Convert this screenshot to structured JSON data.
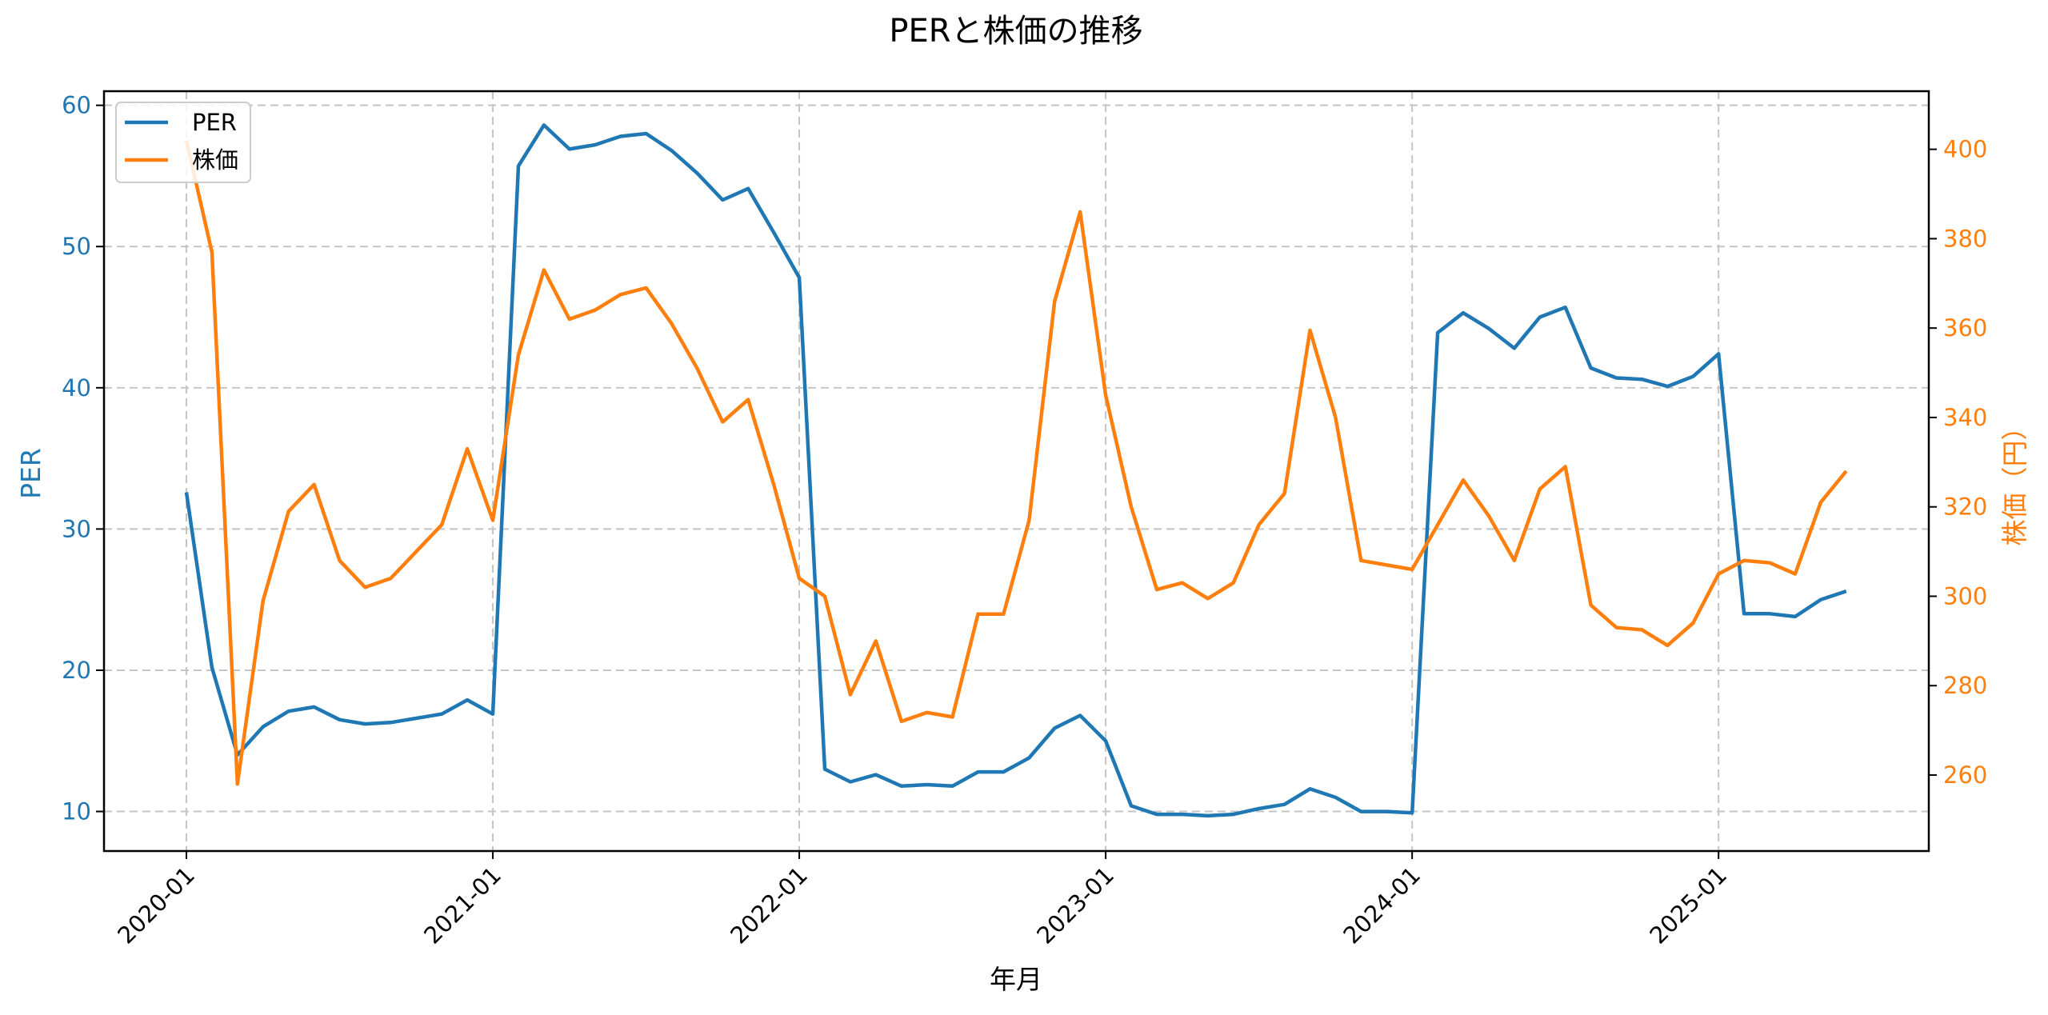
{
  "chart_data": {
    "type": "line",
    "title": "PERと株価の推移",
    "xlabel": "年月",
    "ylabel": "PER",
    "y2label": "株価（円）",
    "x": [
      "2020-01",
      "2020-02",
      "2020-03",
      "2020-04",
      "2020-05",
      "2020-06",
      "2020-07",
      "2020-08",
      "2020-09",
      "2020-10",
      "2020-11",
      "2020-12",
      "2021-01",
      "2021-02",
      "2021-03",
      "2021-04",
      "2021-05",
      "2021-06",
      "2021-07",
      "2021-08",
      "2021-09",
      "2021-10",
      "2021-11",
      "2021-12",
      "2022-01",
      "2022-02",
      "2022-03",
      "2022-04",
      "2022-05",
      "2022-06",
      "2022-07",
      "2022-08",
      "2022-09",
      "2022-10",
      "2022-11",
      "2022-12",
      "2023-01",
      "2023-02",
      "2023-03",
      "2023-04",
      "2023-05",
      "2023-06",
      "2023-07",
      "2023-08",
      "2023-09",
      "2023-10",
      "2023-11",
      "2023-12",
      "2024-01",
      "2024-02",
      "2024-03",
      "2024-04",
      "2024-05",
      "2024-06",
      "2024-07",
      "2024-08",
      "2024-09",
      "2024-10",
      "2024-11",
      "2024-12",
      "2025-01",
      "2025-02",
      "2025-03",
      "2025-04",
      "2025-05",
      "2025-06"
    ],
    "x_ticks": [
      "2020-01",
      "2021-01",
      "2022-01",
      "2023-01",
      "2024-01",
      "2025-01"
    ],
    "series": [
      {
        "name": "PER",
        "axis": "left",
        "color": "#1f77b4",
        "values": [
          32.6,
          20.2,
          14.0,
          16.0,
          17.1,
          17.4,
          16.5,
          16.2,
          16.3,
          16.6,
          16.9,
          17.9,
          16.9,
          55.7,
          58.6,
          56.9,
          57.2,
          57.8,
          58.0,
          56.8,
          55.2,
          53.3,
          54.1,
          51.0,
          47.8,
          13.0,
          12.1,
          12.6,
          11.8,
          11.9,
          11.8,
          12.8,
          12.8,
          13.8,
          15.9,
          16.8,
          15.0,
          10.4,
          9.8,
          9.8,
          9.7,
          9.8,
          10.2,
          10.5,
          11.6,
          11.0,
          10.0,
          10.0,
          9.9,
          43.9,
          45.3,
          44.2,
          42.8,
          45.0,
          45.7,
          41.4,
          40.7,
          40.6,
          40.1,
          40.8,
          42.4,
          24.0,
          24.0,
          23.8,
          25.0,
          25.6
        ]
      },
      {
        "name": "株価",
        "axis": "right",
        "color": "#ff7f0e",
        "values": [
          402,
          377,
          258,
          299,
          319,
          325,
          308,
          302,
          304,
          310,
          316,
          333,
          317,
          354,
          373,
          362,
          364,
          367.5,
          369,
          361,
          351,
          339,
          344,
          325,
          304,
          300,
          278,
          290,
          272,
          274,
          273,
          296,
          296,
          317,
          366,
          386,
          345,
          320,
          301.5,
          303,
          299.5,
          303,
          316,
          323,
          359.5,
          340,
          308,
          307,
          306,
          316,
          326,
          318,
          308,
          324,
          329,
          298,
          293,
          292.5,
          289,
          294,
          305,
          308,
          307.5,
          305,
          321,
          328
        ]
      }
    ],
    "y_left": {
      "ticks": [
        10,
        20,
        30,
        40,
        50,
        60
      ],
      "range": [
        7.2,
        61.0
      ],
      "color": "#1f77b4"
    },
    "y_right": {
      "ticks": [
        260,
        280,
        300,
        320,
        340,
        360,
        380,
        400
      ],
      "range": [
        243,
        413
      ],
      "color": "#ff7f0e"
    },
    "grid": true,
    "legend": {
      "position": "upper left",
      "entries": [
        "PER",
        "株価"
      ]
    }
  }
}
